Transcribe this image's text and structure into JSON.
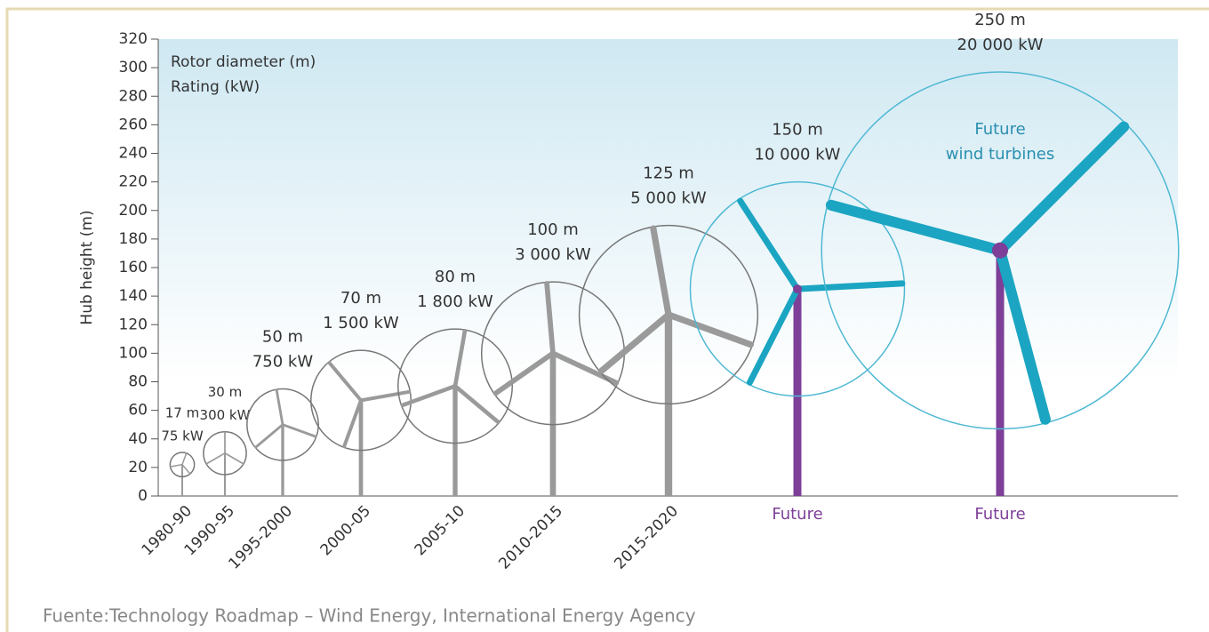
{
  "chart_data": {
    "type": "turbine",
    "y_label": "Hub height (m)",
    "legend": [
      "Rotor diameter (m)",
      "Rating (kW)"
    ],
    "categories": [
      "1980-90",
      "1990-95",
      "1995-2000",
      "2000-05",
      "2005-10",
      "2010-2015",
      "2015-2020",
      "Future",
      "Future"
    ],
    "hub_height": [
      22,
      30,
      50,
      67,
      77,
      100,
      127,
      145,
      172
    ],
    "rotor_diameter": {
      "values": [
        17,
        30,
        50,
        70,
        80,
        100,
        125,
        150,
        250
      ],
      "value_labels": [
        "17 m",
        "30 m",
        "50 m",
        "70 m",
        "80 m",
        "100 m",
        "125 m",
        "150 m",
        "250 m"
      ]
    },
    "rating": {
      "values": [
        75,
        300,
        750,
        1500,
        1800,
        3000,
        5000,
        10000,
        20000
      ],
      "value_labels": [
        "75 kW",
        "300 kW",
        "750 kW",
        "1 500 kW",
        "1 800 kW",
        "3 000 kW",
        "5 000 kW",
        "10 000 kW",
        "20 000 kW"
      ]
    },
    "blade_colors": [
      "#9a9a9a",
      "#9a9a9a",
      "#9a9a9a",
      "#9a9a9a",
      "#9a9a9a",
      "#9a9a9a",
      "#9a9a9a",
      "#1ba5c2",
      "#1ba5c2"
    ],
    "tower_colors": [
      "#9a9a9a",
      "#9a9a9a",
      "#9a9a9a",
      "#9a9a9a",
      "#9a9a9a",
      "#9a9a9a",
      "#9a9a9a",
      "#7d3f98",
      "#7d3f98"
    ],
    "circle_colors": [
      "#777777",
      "#777777",
      "#777777",
      "#777777",
      "#777777",
      "#777777",
      "#777777",
      "#4fb8d3",
      "#4fb8d3"
    ],
    "annotation": [
      "Future",
      "wind turbines"
    ],
    "ylim": [
      0,
      320
    ],
    "yticks": [
      0,
      20,
      40,
      60,
      80,
      100,
      120,
      140,
      160,
      180,
      200,
      220,
      240,
      260,
      280,
      300,
      320
    ],
    "source": "Fuente:Technology Roadmap – Wind Energy, International Energy Agency"
  }
}
